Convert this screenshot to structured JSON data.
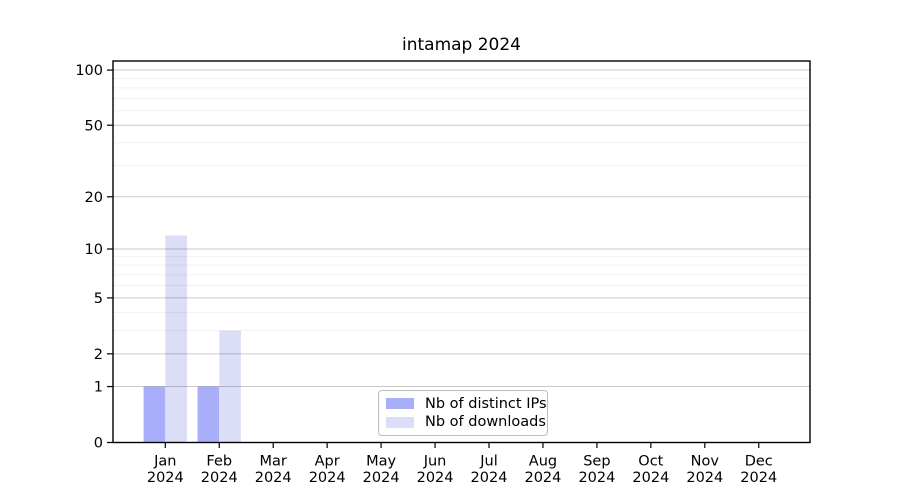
{
  "figure": {
    "background": "#ffffff"
  },
  "chart_data": {
    "type": "bar",
    "title": "intamap 2024",
    "categories": [
      "Jan",
      "Feb",
      "Mar",
      "Apr",
      "May",
      "Jun",
      "Jul",
      "Aug",
      "Sep",
      "Oct",
      "Nov",
      "Dec"
    ],
    "category_year": "2024",
    "series": [
      {
        "name": "Nb of distinct IPs",
        "color": "#a9aefa",
        "values": [
          1,
          1,
          0,
          0,
          0,
          0,
          0,
          0,
          0,
          0,
          0,
          0
        ]
      },
      {
        "name": "Nb of downloads",
        "color": "#dcdef8",
        "values": [
          12,
          3,
          0,
          0,
          0,
          0,
          0,
          0,
          0,
          0,
          0,
          0
        ]
      }
    ],
    "yscale": "log1p",
    "ylim": [
      0,
      112
    ],
    "yticks": [
      0,
      1,
      2,
      5,
      10,
      20,
      50,
      100
    ],
    "minor_grid_values": [
      3,
      4,
      6,
      7,
      8,
      9,
      30,
      40,
      60,
      70,
      80,
      90
    ],
    "grid": "horizontal",
    "legend_position": "inside-bottom-center",
    "colors": {
      "axis": "#000000",
      "major_grid": "rgba(0,0,0,0.21)",
      "minor_grid": "rgba(0,0,0,0.055)",
      "tick_text": "#000000"
    }
  }
}
